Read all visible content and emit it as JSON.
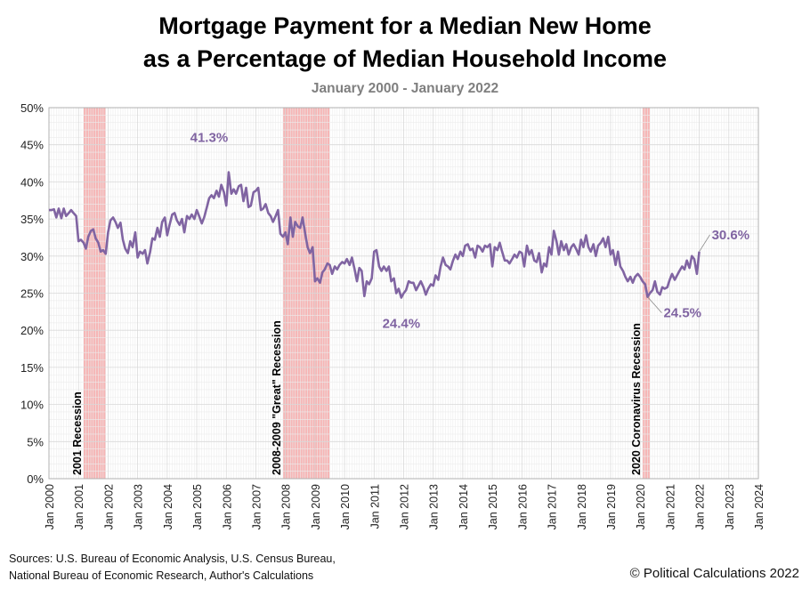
{
  "title_line1": "Mortgage Payment for a Median New Home",
  "title_line2": "as a Percentage of Median Household Income",
  "subtitle": "January 2000 - January 2022",
  "sources_line1": "Sources: U.S. Bureau of Economic Analysis, U.S. Census Bureau,",
  "sources_line2": "National Bureau of Economic Research, Author's Calculations",
  "copyright": "© Political Calculations 2022",
  "colors": {
    "line": "#8064a2",
    "recession": "#f4a9a9",
    "grid": "#d9d9d9",
    "annotation": "#8064a2"
  },
  "chart_data": {
    "type": "line",
    "title": "Mortgage Payment for a Median New Home as a Percentage of Median Household Income",
    "subtitle": "January 2000 - January 2022",
    "xlabel": "",
    "ylabel": "",
    "xlim": [
      2000,
      2024
    ],
    "ylim": [
      0,
      50
    ],
    "grid": true,
    "yticks": [
      "0%",
      "5%",
      "10%",
      "15%",
      "20%",
      "25%",
      "30%",
      "35%",
      "40%",
      "45%",
      "50%"
    ],
    "xticks": [
      "Jan 2000",
      "Jan 2001",
      "Jan 2002",
      "Jan 2003",
      "Jan 2004",
      "Jan 2005",
      "Jan 2006",
      "Jan 2007",
      "Jan 2008",
      "Jan 2009",
      "Jan 2010",
      "Jan 2011",
      "Jan 2012",
      "Jan 2013",
      "Jan 2014",
      "Jan 2015",
      "Jan 2016",
      "Jan 2017",
      "Jan 2018",
      "Jan 2019",
      "Jan 2020",
      "Jan 2021",
      "Jan 2022",
      "Jan 2023",
      "Jan 2024"
    ],
    "recessions": [
      {
        "label": "2001 Recession",
        "start": 2001.17,
        "end": 2001.92
      },
      {
        "label": "2008-2009 \"Great\" Recession",
        "start": 2007.92,
        "end": 2009.5
      },
      {
        "label": "2020 Coronavirus Recession",
        "start": 2020.08,
        "end": 2020.33
      }
    ],
    "annotations": [
      {
        "text": "41.3%",
        "x": 2006.08,
        "y": 41.3
      },
      {
        "text": "24.4%",
        "x": 2011.92,
        "y": 24.4
      },
      {
        "text": "24.5%",
        "x": 2020.25,
        "y": 24.5
      },
      {
        "text": "30.6%",
        "x": 2022.0,
        "y": 30.6
      }
    ],
    "series": [
      {
        "points": [
          [
            2000.0,
            36.2
          ],
          [
            2000.08,
            36.2
          ],
          [
            2000.17,
            36.3
          ],
          [
            2000.25,
            35.2
          ],
          [
            2000.33,
            36.4
          ],
          [
            2000.42,
            35.1
          ],
          [
            2000.5,
            36.4
          ],
          [
            2000.58,
            35.4
          ],
          [
            2000.67,
            35.8
          ],
          [
            2000.75,
            36.2
          ],
          [
            2000.83,
            35.8
          ],
          [
            2000.92,
            35.4
          ],
          [
            2001.0,
            32.0
          ],
          [
            2001.08,
            32.2
          ],
          [
            2001.17,
            31.8
          ],
          [
            2001.25,
            31.0
          ],
          [
            2001.33,
            32.6
          ],
          [
            2001.42,
            33.4
          ],
          [
            2001.5,
            33.6
          ],
          [
            2001.58,
            32.4
          ],
          [
            2001.67,
            31.8
          ],
          [
            2001.75,
            30.6
          ],
          [
            2001.83,
            30.8
          ],
          [
            2001.92,
            30.3
          ],
          [
            2002.0,
            33.2
          ],
          [
            2002.08,
            34.8
          ],
          [
            2002.17,
            35.2
          ],
          [
            2002.25,
            34.6
          ],
          [
            2002.33,
            33.8
          ],
          [
            2002.42,
            34.5
          ],
          [
            2002.5,
            32.2
          ],
          [
            2002.58,
            31.0
          ],
          [
            2002.67,
            30.4
          ],
          [
            2002.75,
            32.0
          ],
          [
            2002.83,
            31.2
          ],
          [
            2002.92,
            33.2
          ],
          [
            2003.0,
            29.8
          ],
          [
            2003.08,
            30.6
          ],
          [
            2003.17,
            30.3
          ],
          [
            2003.25,
            30.8
          ],
          [
            2003.33,
            29.0
          ],
          [
            2003.42,
            30.5
          ],
          [
            2003.5,
            32.4
          ],
          [
            2003.58,
            32.2
          ],
          [
            2003.67,
            33.8
          ],
          [
            2003.75,
            32.6
          ],
          [
            2003.83,
            34.6
          ],
          [
            2003.92,
            35.2
          ],
          [
            2004.0,
            32.8
          ],
          [
            2004.08,
            34.2
          ],
          [
            2004.17,
            35.6
          ],
          [
            2004.25,
            35.8
          ],
          [
            2004.33,
            34.8
          ],
          [
            2004.42,
            34.2
          ],
          [
            2004.5,
            35.0
          ],
          [
            2004.58,
            33.2
          ],
          [
            2004.67,
            35.4
          ],
          [
            2004.75,
            35.0
          ],
          [
            2004.83,
            35.6
          ],
          [
            2004.92,
            35.0
          ],
          [
            2005.0,
            36.2
          ],
          [
            2005.08,
            35.4
          ],
          [
            2005.17,
            34.4
          ],
          [
            2005.25,
            35.2
          ],
          [
            2005.33,
            36.4
          ],
          [
            2005.42,
            37.8
          ],
          [
            2005.5,
            38.2
          ],
          [
            2005.58,
            37.8
          ],
          [
            2005.67,
            38.8
          ],
          [
            2005.75,
            38.0
          ],
          [
            2005.83,
            39.6
          ],
          [
            2005.92,
            38.6
          ],
          [
            2006.0,
            36.8
          ],
          [
            2006.08,
            41.3
          ],
          [
            2006.17,
            38.4
          ],
          [
            2006.25,
            39.0
          ],
          [
            2006.33,
            38.4
          ],
          [
            2006.42,
            39.4
          ],
          [
            2006.5,
            39.6
          ],
          [
            2006.58,
            37.4
          ],
          [
            2006.67,
            39.2
          ],
          [
            2006.75,
            36.6
          ],
          [
            2006.83,
            36.8
          ],
          [
            2006.92,
            38.6
          ],
          [
            2007.0,
            38.8
          ],
          [
            2007.08,
            39.2
          ],
          [
            2007.17,
            36.2
          ],
          [
            2007.25,
            36.4
          ],
          [
            2007.33,
            37.0
          ],
          [
            2007.42,
            35.8
          ],
          [
            2007.5,
            35.4
          ],
          [
            2007.58,
            34.6
          ],
          [
            2007.67,
            35.4
          ],
          [
            2007.75,
            36.2
          ],
          [
            2007.83,
            33.0
          ],
          [
            2007.92,
            32.6
          ],
          [
            2008.0,
            33.2
          ],
          [
            2008.08,
            31.6
          ],
          [
            2008.17,
            35.2
          ],
          [
            2008.25,
            32.6
          ],
          [
            2008.33,
            34.6
          ],
          [
            2008.42,
            34.0
          ],
          [
            2008.5,
            33.8
          ],
          [
            2008.58,
            35.2
          ],
          [
            2008.67,
            33.0
          ],
          [
            2008.75,
            31.2
          ],
          [
            2008.83,
            30.4
          ],
          [
            2008.92,
            31.2
          ],
          [
            2009.0,
            26.6
          ],
          [
            2009.08,
            27.0
          ],
          [
            2009.17,
            26.4
          ],
          [
            2009.25,
            27.8
          ],
          [
            2009.33,
            28.2
          ],
          [
            2009.42,
            29.0
          ],
          [
            2009.5,
            28.8
          ],
          [
            2009.58,
            27.6
          ],
          [
            2009.67,
            28.6
          ],
          [
            2009.75,
            28.2
          ],
          [
            2009.83,
            28.8
          ],
          [
            2009.92,
            29.2
          ],
          [
            2010.0,
            29.0
          ],
          [
            2010.08,
            29.6
          ],
          [
            2010.17,
            28.8
          ],
          [
            2010.25,
            29.8
          ],
          [
            2010.33,
            28.4
          ],
          [
            2010.42,
            26.6
          ],
          [
            2010.5,
            28.4
          ],
          [
            2010.58,
            28.0
          ],
          [
            2010.67,
            24.6
          ],
          [
            2010.75,
            26.6
          ],
          [
            2010.83,
            26.2
          ],
          [
            2010.92,
            27.0
          ],
          [
            2011.0,
            30.6
          ],
          [
            2011.08,
            30.8
          ],
          [
            2011.17,
            28.6
          ],
          [
            2011.25,
            28.0
          ],
          [
            2011.33,
            28.6
          ],
          [
            2011.42,
            28.0
          ],
          [
            2011.5,
            28.6
          ],
          [
            2011.58,
            26.6
          ],
          [
            2011.67,
            27.0
          ],
          [
            2011.75,
            25.0
          ],
          [
            2011.83,
            25.6
          ],
          [
            2011.92,
            24.4
          ],
          [
            2012.0,
            25.0
          ],
          [
            2012.08,
            25.4
          ],
          [
            2012.17,
            26.6
          ],
          [
            2012.25,
            26.4
          ],
          [
            2012.33,
            26.4
          ],
          [
            2012.42,
            25.4
          ],
          [
            2012.5,
            26.0
          ],
          [
            2012.58,
            26.6
          ],
          [
            2012.67,
            25.8
          ],
          [
            2012.75,
            24.8
          ],
          [
            2012.83,
            25.6
          ],
          [
            2012.92,
            26.2
          ],
          [
            2013.0,
            26.0
          ],
          [
            2013.08,
            27.4
          ],
          [
            2013.17,
            26.8
          ],
          [
            2013.25,
            28.6
          ],
          [
            2013.33,
            29.8
          ],
          [
            2013.42,
            28.8
          ],
          [
            2013.5,
            28.6
          ],
          [
            2013.58,
            28.2
          ],
          [
            2013.67,
            29.4
          ],
          [
            2013.75,
            30.2
          ],
          [
            2013.83,
            29.6
          ],
          [
            2013.92,
            30.6
          ],
          [
            2014.0,
            30.0
          ],
          [
            2014.08,
            31.4
          ],
          [
            2014.17,
            31.6
          ],
          [
            2014.25,
            30.8
          ],
          [
            2014.33,
            31.0
          ],
          [
            2014.42,
            29.8
          ],
          [
            2014.5,
            31.4
          ],
          [
            2014.58,
            31.2
          ],
          [
            2014.67,
            30.6
          ],
          [
            2014.75,
            31.4
          ],
          [
            2014.83,
            31.2
          ],
          [
            2014.92,
            31.6
          ],
          [
            2015.0,
            28.6
          ],
          [
            2015.08,
            31.2
          ],
          [
            2015.17,
            30.8
          ],
          [
            2015.25,
            31.8
          ],
          [
            2015.33,
            30.6
          ],
          [
            2015.42,
            29.4
          ],
          [
            2015.5,
            29.4
          ],
          [
            2015.58,
            29.0
          ],
          [
            2015.67,
            29.6
          ],
          [
            2015.75,
            30.2
          ],
          [
            2015.83,
            29.8
          ],
          [
            2015.92,
            30.6
          ],
          [
            2016.0,
            30.4
          ],
          [
            2016.08,
            28.6
          ],
          [
            2016.17,
            31.4
          ],
          [
            2016.25,
            30.2
          ],
          [
            2016.33,
            30.8
          ],
          [
            2016.42,
            29.4
          ],
          [
            2016.5,
            29.2
          ],
          [
            2016.58,
            30.4
          ],
          [
            2016.67,
            27.8
          ],
          [
            2016.75,
            29.0
          ],
          [
            2016.83,
            28.6
          ],
          [
            2016.92,
            31.2
          ],
          [
            2017.0,
            30.2
          ],
          [
            2017.08,
            33.4
          ],
          [
            2017.17,
            32.0
          ],
          [
            2017.25,
            30.2
          ],
          [
            2017.33,
            32.0
          ],
          [
            2017.42,
            30.8
          ],
          [
            2017.5,
            31.6
          ],
          [
            2017.58,
            30.2
          ],
          [
            2017.67,
            31.2
          ],
          [
            2017.75,
            31.6
          ],
          [
            2017.83,
            31.0
          ],
          [
            2017.92,
            30.2
          ],
          [
            2018.0,
            32.2
          ],
          [
            2018.08,
            31.2
          ],
          [
            2018.17,
            32.8
          ],
          [
            2018.25,
            31.2
          ],
          [
            2018.33,
            30.6
          ],
          [
            2018.42,
            31.6
          ],
          [
            2018.5,
            30.0
          ],
          [
            2018.58,
            31.4
          ],
          [
            2018.67,
            31.8
          ],
          [
            2018.75,
            32.4
          ],
          [
            2018.83,
            31.2
          ],
          [
            2018.92,
            32.6
          ],
          [
            2019.0,
            30.2
          ],
          [
            2019.08,
            30.8
          ],
          [
            2019.17,
            28.8
          ],
          [
            2019.25,
            30.6
          ],
          [
            2019.33,
            28.6
          ],
          [
            2019.42,
            28.0
          ],
          [
            2019.5,
            27.2
          ],
          [
            2019.58,
            26.6
          ],
          [
            2019.67,
            27.2
          ],
          [
            2019.75,
            26.4
          ],
          [
            2019.83,
            27.2
          ],
          [
            2019.92,
            27.6
          ],
          [
            2020.0,
            27.2
          ],
          [
            2020.08,
            26.6
          ],
          [
            2020.17,
            26.2
          ],
          [
            2020.25,
            24.5
          ],
          [
            2020.33,
            25.0
          ],
          [
            2020.42,
            25.4
          ],
          [
            2020.5,
            26.6
          ],
          [
            2020.58,
            25.2
          ],
          [
            2020.67,
            24.8
          ],
          [
            2020.75,
            25.8
          ],
          [
            2020.83,
            25.6
          ],
          [
            2020.92,
            25.8
          ],
          [
            2021.0,
            26.8
          ],
          [
            2021.08,
            27.6
          ],
          [
            2021.17,
            26.8
          ],
          [
            2021.25,
            27.4
          ],
          [
            2021.33,
            28.0
          ],
          [
            2021.42,
            28.6
          ],
          [
            2021.5,
            28.2
          ],
          [
            2021.58,
            29.4
          ],
          [
            2021.67,
            28.4
          ],
          [
            2021.75,
            30.0
          ],
          [
            2021.83,
            29.6
          ],
          [
            2021.92,
            27.6
          ],
          [
            2022.0,
            30.6
          ]
        ]
      }
    ]
  }
}
